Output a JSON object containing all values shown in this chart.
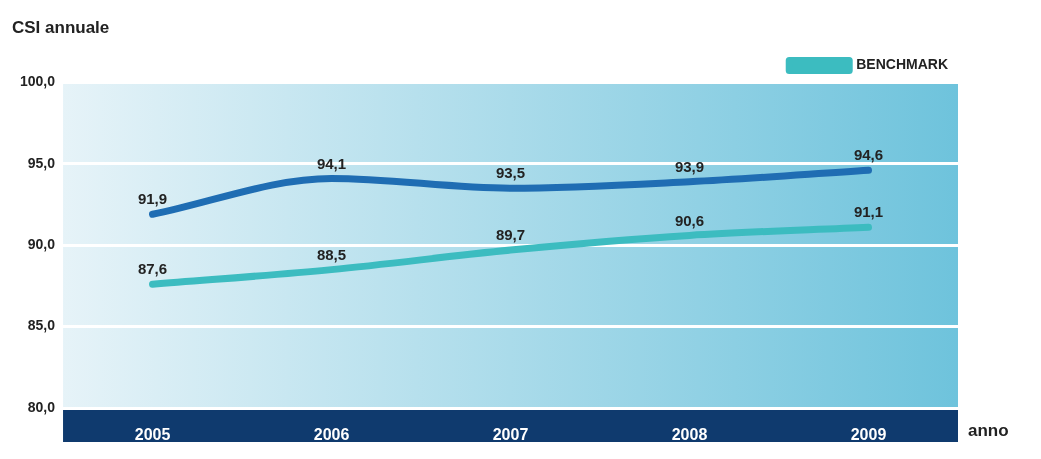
{
  "chart_data": {
    "type": "line",
    "title": "CSI annuale",
    "xlabel": "anno",
    "categories": [
      "2005",
      "2006",
      "2007",
      "2008",
      "2009"
    ],
    "series": [
      {
        "color": "#1f6db3",
        "values": [
          91.9,
          94.1,
          93.5,
          93.9,
          94.6
        ],
        "value_labels": [
          "91,9",
          "94,1",
          "93,5",
          "93,9",
          "94,6"
        ]
      },
      {
        "name": "BENCHMARK",
        "color": "#3cbcc0",
        "values": [
          87.6,
          88.5,
          89.7,
          90.6,
          91.1
        ],
        "value_labels": [
          "87,6",
          "88,5",
          "89,7",
          "90,6",
          "91,1"
        ]
      }
    ],
    "ylim": [
      80,
      100
    ],
    "yticks": [
      {
        "value": 80,
        "label": "80,0"
      },
      {
        "value": 85,
        "label": "85,0"
      },
      {
        "value": 90,
        "label": "90,0"
      },
      {
        "value": 95,
        "label": "95,0"
      },
      {
        "value": 100,
        "label": "100,0"
      }
    ],
    "grid": "y",
    "legend": "top right",
    "marker": "none",
    "line_style": "solid"
  }
}
